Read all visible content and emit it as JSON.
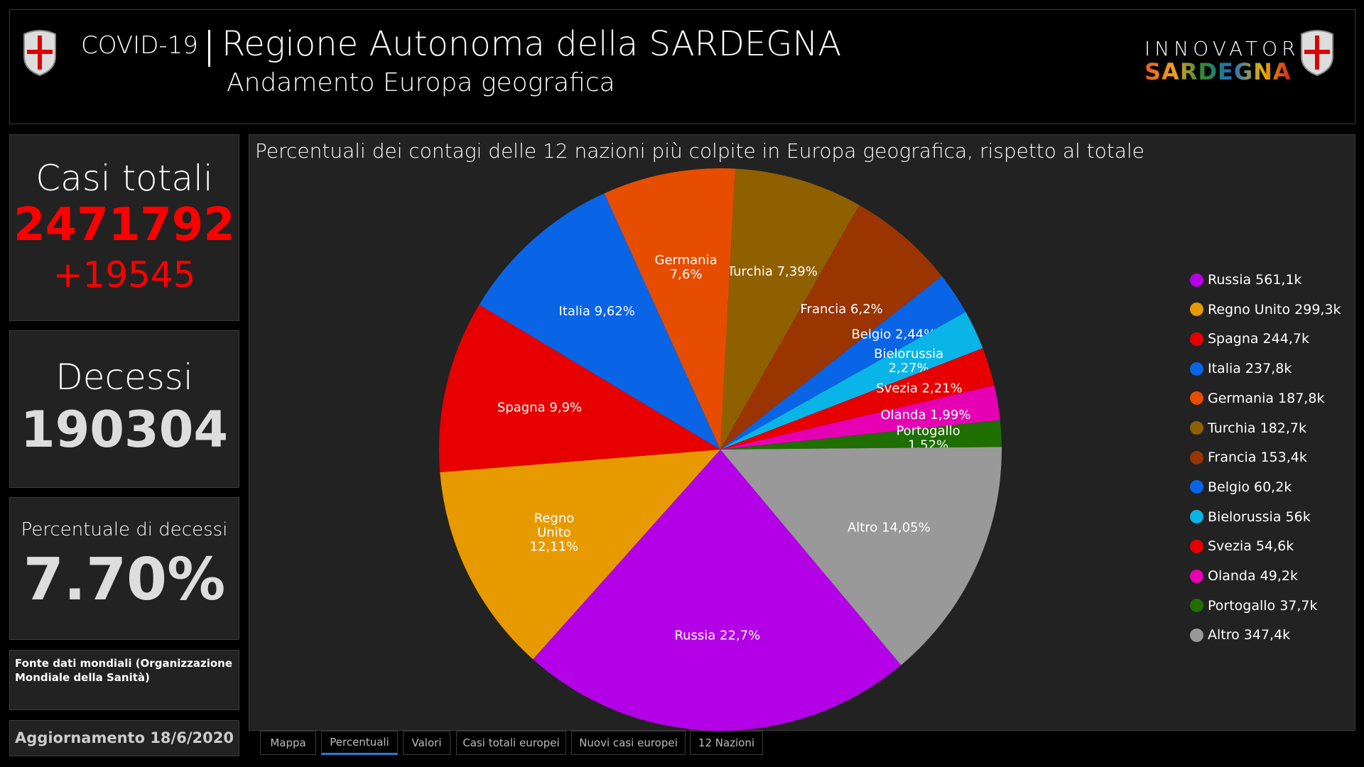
{
  "header": {
    "covid": "COVID-19",
    "title": "Regione Autonoma della SARDEGNA",
    "subtitle": "Andamento Europa geografica",
    "logo_top": "INNOVATORI",
    "logo_bottom": "SARDEGNA"
  },
  "cards": {
    "cases_label": "Casi totali",
    "cases_value": "2471792",
    "cases_delta": "+19545",
    "deaths_label": "Decessi",
    "deaths_value": "190304",
    "rate_label": "Percentuale di decessi",
    "rate_value": "7.70%",
    "source": "Fonte dati mondiali (Organizzazione Mondiale della Sanità)",
    "updated": "Aggiornamento 18/6/2020"
  },
  "tabs": [
    "Mappa",
    "Percentuali",
    "Valori",
    "Casi totali europei",
    "Nuovi casi europei",
    "12 Nazioni"
  ],
  "active_tab": 1,
  "chart_data": {
    "type": "pie",
    "title": "Percentuali dei contagi delle 12 nazioni più colpite in Europa geografica, rispetto al totale",
    "start_angle_deg": 3,
    "legend_position": "right",
    "slices": [
      {
        "name": "Turchia",
        "percent": 7.39,
        "label_lines": [
          "Turchia 7,39%"
        ],
        "legend": "Turchia 182,7k",
        "color": "#8f6000"
      },
      {
        "name": "Francia",
        "percent": 6.2,
        "label_lines": [
          "Francia 6,2%"
        ],
        "legend": "Francia 153,4k",
        "color": "#9a3400"
      },
      {
        "name": "Belgio",
        "percent": 2.44,
        "label_lines": [
          "Belgio 2,44%"
        ],
        "legend": "Belgio 60,2k",
        "color": "#0a64e6"
      },
      {
        "name": "Bielorussia",
        "percent": 2.27,
        "label_lines": [
          "Bielorussia",
          "2,27%"
        ],
        "legend": "Bielorussia 56k",
        "color": "#0ab4e6"
      },
      {
        "name": "Svezia",
        "percent": 2.21,
        "label_lines": [
          "Svezia 2,21%"
        ],
        "legend": "Svezia 54,6k",
        "color": "#e60000"
      },
      {
        "name": "Olanda",
        "percent": 1.99,
        "label_lines": [
          "Olanda 1,99%"
        ],
        "legend": "Olanda 49,2k",
        "color": "#e600b4"
      },
      {
        "name": "Portogallo",
        "percent": 1.52,
        "label_lines": [
          "Portogallo",
          "1,52%"
        ],
        "legend": "Portogallo 37,7k",
        "color": "#1e6e00"
      },
      {
        "name": "Altro",
        "percent": 14.05,
        "label_lines": [
          "Altro 14,05%"
        ],
        "legend": "Altro 347,4k",
        "color": "#999999"
      },
      {
        "name": "Russia",
        "percent": 22.7,
        "label_lines": [
          "Russia 22,7%"
        ],
        "legend": "Russia 561,1k",
        "color": "#b400e6"
      },
      {
        "name": "Regno Unito",
        "percent": 12.11,
        "label_lines": [
          "Regno",
          "Unito",
          "12,11%"
        ],
        "legend": "Regno Unito 299,3k",
        "color": "#e69a00"
      },
      {
        "name": "Spagna",
        "percent": 9.9,
        "label_lines": [
          "Spagna 9,9%"
        ],
        "legend": "Spagna 244,7k",
        "color": "#e60000"
      },
      {
        "name": "Italia",
        "percent": 9.62,
        "label_lines": [
          "Italia 9,62%"
        ],
        "legend": "Italia 237,8k",
        "color": "#0a64e6"
      },
      {
        "name": "Germania",
        "percent": 7.6,
        "label_lines": [
          "Germania",
          "7,6%"
        ],
        "legend": "Germania 187,8k",
        "color": "#e64d00"
      }
    ],
    "legend_order": [
      "Russia",
      "Regno Unito",
      "Spagna",
      "Italia",
      "Germania",
      "Turchia",
      "Francia",
      "Belgio",
      "Bielorussia",
      "Svezia",
      "Olanda",
      "Portogallo",
      "Altro"
    ]
  }
}
